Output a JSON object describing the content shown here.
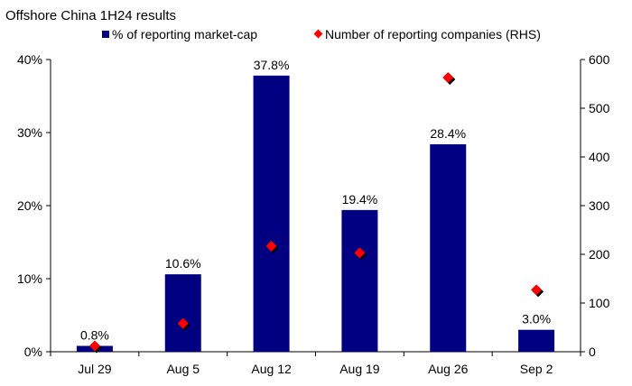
{
  "chart_data": {
    "type": "bar",
    "title": "Offshore China 1H24 results",
    "categories": [
      "Jul 29",
      "Aug 5",
      "Aug 12",
      "Aug 19",
      "Aug 26",
      "Sep 2"
    ],
    "series": [
      {
        "name": "% of reporting market-cap",
        "type": "bar",
        "axis": "left",
        "values": [
          0.8,
          10.6,
          37.8,
          19.4,
          28.4,
          3.0
        ],
        "labels": [
          "0.8%",
          "10.6%",
          "37.8%",
          "19.4%",
          "28.4%",
          "3.0%"
        ],
        "color": "#000080"
      },
      {
        "name": "Number of reporting companies (RHS)",
        "type": "scatter",
        "axis": "right",
        "values": [
          12,
          58,
          217,
          203,
          563,
          127
        ],
        "color": "#ff0000"
      }
    ],
    "left_axis": {
      "ylim": [
        0,
        40
      ],
      "ticks": [
        0,
        10,
        20,
        30,
        40
      ],
      "tick_labels": [
        "0%",
        "10%",
        "20%",
        "30%",
        "40%"
      ]
    },
    "right_axis": {
      "ylim": [
        0,
        600
      ],
      "ticks": [
        0,
        100,
        200,
        300,
        400,
        500,
        600
      ],
      "tick_labels": [
        "0",
        "100",
        "200",
        "300",
        "400",
        "500",
        "600"
      ]
    },
    "legend_position": "top-center",
    "grid": false
  }
}
